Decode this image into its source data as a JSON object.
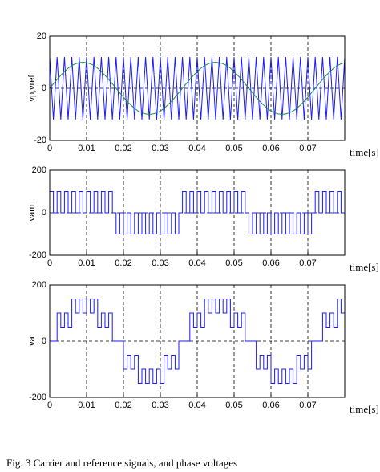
{
  "chart_data": [
    {
      "type": "line",
      "ylabel": "vp,vref",
      "xlabel": "time[s]",
      "xlim": [
        0,
        0.08
      ],
      "ylim": [
        -20,
        20
      ],
      "xticks": [
        0,
        0.01,
        0.02,
        0.03,
        0.04,
        0.05,
        0.06,
        0.07
      ],
      "yticks": [
        -20,
        0,
        20
      ],
      "grid": true,
      "x": [
        0,
        0.001,
        0.002,
        0.003,
        0.004,
        0.005,
        0.006,
        0.007,
        0.008,
        0.009,
        0.01,
        0.011,
        0.012,
        0.013,
        0.014,
        0.015,
        0.016,
        0.017,
        0.018,
        0.019,
        0.02,
        0.021,
        0.022,
        0.023,
        0.024,
        0.025,
        0.026,
        0.027,
        0.028,
        0.029,
        0.03,
        0.031,
        0.032,
        0.033,
        0.034,
        0.035,
        0.036,
        0.037,
        0.038,
        0.039,
        0.04,
        0.041,
        0.042,
        0.043,
        0.044,
        0.045,
        0.046,
        0.047,
        0.048,
        0.049,
        0.05,
        0.051,
        0.052,
        0.053,
        0.054,
        0.055,
        0.056,
        0.057,
        0.058,
        0.059,
        0.06,
        0.061,
        0.062,
        0.063,
        0.064,
        0.065,
        0.066,
        0.067,
        0.068,
        0.069,
        0.07,
        0.071,
        0.072,
        0.073,
        0.074,
        0.075,
        0.076,
        0.077,
        0.078,
        0.079,
        0.08
      ],
      "series": [
        {
          "color": "#1a1aff",
          "values": [
            12,
            -12,
            12,
            -12,
            12,
            -12,
            12,
            -12,
            12,
            -12,
            12,
            -12,
            12,
            -12,
            12,
            -12,
            12,
            -12,
            12,
            -12,
            12,
            -12,
            12,
            -12,
            12,
            -12,
            12,
            -12,
            12,
            -12,
            12,
            -12,
            12,
            -12,
            12,
            -12,
            12,
            -12,
            12,
            -12,
            12,
            -12,
            12,
            -12,
            12,
            -12,
            12,
            -12,
            12,
            -12,
            12,
            -12,
            12,
            -12,
            12,
            -12,
            12,
            -12,
            12,
            -12,
            12,
            -12,
            12,
            -12,
            12,
            -12,
            12,
            -12,
            12,
            -12,
            12,
            -12,
            12,
            -12,
            12,
            -12,
            12,
            -12,
            12,
            -12,
            12
          ]
        },
        {
          "color": "#1f8a3a",
          "values": [
            0,
            1.7,
            3.4,
            5,
            6.4,
            7.7,
            8.7,
            9.4,
            9.8,
            10,
            9.8,
            9.4,
            8.7,
            7.7,
            6.4,
            5,
            3.4,
            1.7,
            0,
            -1.7,
            -3.4,
            -5,
            -6.4,
            -7.7,
            -8.7,
            -9.4,
            -9.8,
            -10,
            -9.8,
            -9.4,
            -8.7,
            -7.7,
            -6.4,
            -5,
            -3.4,
            -1.7,
            0,
            1.7,
            3.4,
            5,
            6.4,
            7.7,
            8.7,
            9.4,
            9.8,
            10,
            9.8,
            9.4,
            8.7,
            7.7,
            6.4,
            5,
            3.4,
            1.7,
            0,
            -1.7,
            -3.4,
            -5,
            -6.4,
            -7.7,
            -8.7,
            -9.4,
            -9.8,
            -10,
            -9.8,
            -9.4,
            -8.7,
            -7.7,
            -6.4,
            -5,
            -3.4,
            -1.7,
            0,
            1.7,
            3.4,
            5,
            6.4,
            7.7,
            8.7,
            9.4,
            9.8
          ]
        }
      ]
    },
    {
      "type": "step",
      "ylabel": "vam",
      "xlabel": "time[s]",
      "xlim": [
        0,
        0.08
      ],
      "ylim": [
        -200,
        200
      ],
      "xticks": [
        0,
        0.01,
        0.02,
        0.03,
        0.04,
        0.05,
        0.06,
        0.07
      ],
      "yticks": [
        -200,
        0,
        200
      ],
      "grid": true,
      "x": [
        0,
        0.001,
        0.002,
        0.003,
        0.004,
        0.005,
        0.006,
        0.007,
        0.008,
        0.009,
        0.01,
        0.011,
        0.012,
        0.013,
        0.014,
        0.015,
        0.016,
        0.017,
        0.018,
        0.019,
        0.02,
        0.021,
        0.022,
        0.023,
        0.024,
        0.025,
        0.026,
        0.027,
        0.028,
        0.029,
        0.03,
        0.031,
        0.032,
        0.033,
        0.034,
        0.035,
        0.036,
        0.037,
        0.038,
        0.039,
        0.04,
        0.041,
        0.042,
        0.043,
        0.044,
        0.045,
        0.046,
        0.047,
        0.048,
        0.049,
        0.05,
        0.051,
        0.052,
        0.053,
        0.054,
        0.055,
        0.056,
        0.057,
        0.058,
        0.059,
        0.06,
        0.061,
        0.062,
        0.063,
        0.064,
        0.065,
        0.066,
        0.067,
        0.068,
        0.069,
        0.07,
        0.071,
        0.072,
        0.073,
        0.074,
        0.075,
        0.076,
        0.077,
        0.078,
        0.079,
        0.08
      ],
      "series": [
        {
          "color": "#1a1aff",
          "values": [
            100,
            0,
            100,
            0,
            100,
            0,
            100,
            0,
            100,
            0,
            100,
            0,
            100,
            0,
            100,
            0,
            100,
            0,
            -100,
            0,
            -100,
            0,
            -100,
            0,
            -100,
            0,
            -100,
            0,
            -100,
            0,
            -100,
            0,
            -100,
            0,
            -100,
            0,
            100,
            0,
            100,
            0,
            100,
            0,
            100,
            0,
            100,
            0,
            100,
            0,
            100,
            0,
            100,
            0,
            100,
            0,
            -100,
            0,
            -100,
            0,
            -100,
            0,
            -100,
            0,
            -100,
            0,
            -100,
            0,
            -100,
            0,
            -100,
            0,
            -100,
            0,
            100,
            0,
            100,
            0,
            100,
            0,
            100,
            0,
            100
          ]
        }
      ]
    },
    {
      "type": "step",
      "ylabel": "va",
      "xlabel": "time[s]",
      "xlim": [
        0,
        0.08
      ],
      "ylim": [
        -200,
        200
      ],
      "xticks": [
        0,
        0.01,
        0.02,
        0.03,
        0.04,
        0.05,
        0.06,
        0.07
      ],
      "yticks": [
        -200,
        0,
        200
      ],
      "grid": true,
      "x": [
        0,
        0.001,
        0.002,
        0.003,
        0.004,
        0.005,
        0.006,
        0.007,
        0.008,
        0.009,
        0.01,
        0.011,
        0.012,
        0.013,
        0.014,
        0.015,
        0.016,
        0.017,
        0.018,
        0.019,
        0.02,
        0.021,
        0.022,
        0.023,
        0.024,
        0.025,
        0.026,
        0.027,
        0.028,
        0.029,
        0.03,
        0.031,
        0.032,
        0.033,
        0.034,
        0.035,
        0.036,
        0.037,
        0.038,
        0.039,
        0.04,
        0.041,
        0.042,
        0.043,
        0.044,
        0.045,
        0.046,
        0.047,
        0.048,
        0.049,
        0.05,
        0.051,
        0.052,
        0.053,
        0.054,
        0.055,
        0.056,
        0.057,
        0.058,
        0.059,
        0.06,
        0.061,
        0.062,
        0.063,
        0.064,
        0.065,
        0.066,
        0.067,
        0.068,
        0.069,
        0.07,
        0.071,
        0.072,
        0.073,
        0.074,
        0.075,
        0.076,
        0.077,
        0.078,
        0.079,
        0.08
      ],
      "series": [
        {
          "color": "#1a1aff",
          "values": [
            0,
            0,
            100,
            50,
            100,
            50,
            150,
            100,
            150,
            100,
            150,
            100,
            150,
            50,
            100,
            50,
            100,
            0,
            0,
            0,
            -100,
            -50,
            -100,
            -50,
            -150,
            -100,
            -150,
            -100,
            -150,
            -100,
            -150,
            -50,
            -100,
            -50,
            -100,
            0,
            0,
            0,
            100,
            50,
            100,
            50,
            150,
            100,
            150,
            100,
            150,
            100,
            150,
            50,
            100,
            50,
            100,
            0,
            0,
            0,
            -100,
            -50,
            -100,
            -50,
            -150,
            -100,
            -150,
            -100,
            -150,
            -100,
            -150,
            -50,
            -100,
            -50,
            -100,
            0,
            0,
            0,
            100,
            50,
            100,
            50,
            150,
            100,
            150
          ]
        }
      ]
    }
  ],
  "caption": "Fig. 3 Carrier and reference signals, and phase voltages"
}
